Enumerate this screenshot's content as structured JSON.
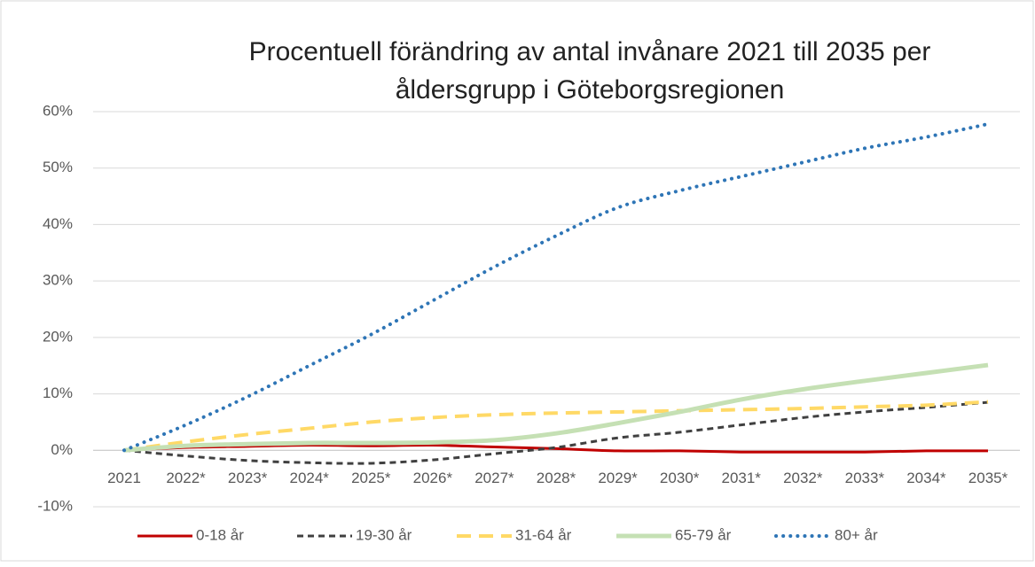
{
  "chart_data": {
    "type": "line",
    "title": [
      "Procentuell förändring av antal invånare 2021 till 2035 per",
      "åldersgrupp i Göteborgsregionen"
    ],
    "categories": [
      "2021",
      "2022*",
      "2023*",
      "2024*",
      "2025*",
      "2026*",
      "2027*",
      "2028*",
      "2029*",
      "2030*",
      "2031*",
      "2032*",
      "2033*",
      "2034*",
      "2035*"
    ],
    "series": [
      {
        "name": "0-18 år",
        "color": "#c00000",
        "dash": "solid",
        "values": [
          0,
          0.5,
          0.7,
          0.9,
          0.8,
          0.9,
          0.6,
          0.3,
          -0.1,
          -0.1,
          -0.3,
          -0.3,
          -0.3,
          -0.1,
          -0.1
        ]
      },
      {
        "name": "19-30 år",
        "color": "#404040",
        "dash": "dashed",
        "values": [
          0,
          -1,
          -1.8,
          -2.2,
          -2.3,
          -1.7,
          -0.6,
          0.5,
          2.2,
          3.2,
          4.5,
          5.8,
          6.8,
          7.6,
          8.5
        ]
      },
      {
        "name": "31-64 år",
        "color": "#ffd966",
        "dash": "long-dashed",
        "values": [
          0,
          1.5,
          2.8,
          3.9,
          5,
          5.8,
          6.3,
          6.6,
          6.8,
          7,
          7.2,
          7.4,
          7.7,
          8,
          8.6
        ]
      },
      {
        "name": "65-79 år",
        "color": "#c5e0b4",
        "dash": "solid-thick",
        "values": [
          0,
          0.8,
          1.1,
          1.3,
          1.3,
          1.4,
          1.8,
          3,
          4.8,
          6.8,
          9,
          10.8,
          12.3,
          13.7,
          15.1
        ]
      },
      {
        "name": "80+ år",
        "color": "#2e75b6",
        "dash": "dotted",
        "values": [
          0,
          4.5,
          9.5,
          15,
          20.5,
          26.5,
          32.5,
          38,
          43,
          46,
          48.5,
          51,
          53.5,
          55.5,
          57.8
        ]
      }
    ],
    "ylim": [
      -10,
      60
    ],
    "yticks": [
      {
        "value": -10,
        "label": "-10%"
      },
      {
        "value": 0,
        "label": "0%"
      },
      {
        "value": 10,
        "label": "10%"
      },
      {
        "value": 20,
        "label": "20%"
      },
      {
        "value": 30,
        "label": "30%"
      },
      {
        "value": 40,
        "label": "40%"
      },
      {
        "value": 50,
        "label": "50%"
      },
      {
        "value": 60,
        "label": "60%"
      }
    ],
    "grid": true,
    "legend": "bottom"
  }
}
